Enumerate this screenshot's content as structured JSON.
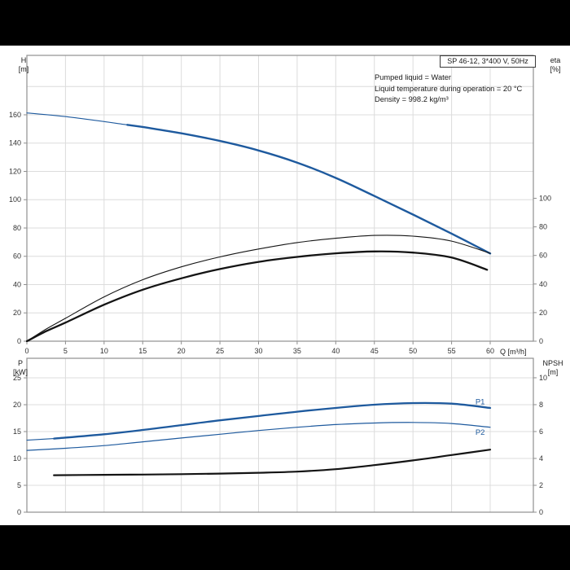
{
  "window": {
    "bg": "#000000",
    "panel_bg": "#ffffff"
  },
  "header": {
    "title_box": "SP 46-12, 3*400 V, 50Hz",
    "info_lines": [
      "Pumped liquid = Water",
      "Liquid temperature during operation = 20 °C",
      "Density = 998.2 kg/m³"
    ]
  },
  "colors": {
    "accent_blue": "#1e5a9e",
    "curve_black": "#141414",
    "grid": "#dcdcdc",
    "frame": "#8f8f8f",
    "tick_text": "#333333"
  },
  "chart_data": [
    {
      "type": "line",
      "title": "SP 46-12, 3*400 V, 50Hz",
      "x": {
        "label": "Q [m³/h]",
        "min": 0,
        "max": 60,
        "ticks": [
          0,
          5,
          10,
          15,
          20,
          25,
          30,
          35,
          40,
          45,
          50,
          55,
          60
        ],
        "grid": [
          5,
          10,
          15,
          20,
          25,
          30,
          35,
          40,
          45,
          50,
          55,
          60
        ],
        "show_labels": true
      },
      "y_left": {
        "label_lines": [
          "H",
          "[m]"
        ],
        "min": 0,
        "max": 202,
        "ticks": [
          0,
          20,
          40,
          60,
          80,
          100,
          120,
          140,
          160
        ],
        "grid": [
          20,
          40,
          60,
          80,
          100,
          120,
          140,
          160,
          180
        ]
      },
      "y_right": {
        "label_lines": [
          "eta",
          "[%]"
        ],
        "min": 0,
        "max": 200,
        "ticks": [
          0,
          20,
          40,
          60,
          80,
          100
        ]
      },
      "legend": "off",
      "series": [
        {
          "id": "head-lead",
          "name": "H head (low-flow, thin)",
          "axis": "left",
          "color": "#1e5a9e",
          "width": 1.1,
          "points": [
            [
              0,
              161.3
            ],
            [
              6,
              158.1
            ],
            [
              13,
              152.9
            ]
          ]
        },
        {
          "id": "head",
          "name": "H head (duty range)",
          "axis": "left",
          "color": "#1e5a9e",
          "width": 2.4,
          "points": [
            [
              13,
              152.9
            ],
            [
              15,
              151.4
            ],
            [
              20,
              146.9
            ],
            [
              25,
              141.5
            ],
            [
              30,
              134.8
            ],
            [
              35,
              126.2
            ],
            [
              40,
              115.4
            ],
            [
              45,
              102.6
            ],
            [
              50,
              89.5
            ],
            [
              55,
              76.0
            ],
            [
              60,
              62.0
            ]
          ]
        },
        {
          "id": "eta-pump",
          "name": "eta pump",
          "axis": "right",
          "color": "#141414",
          "width": 1.1,
          "points": [
            [
              0,
              0
            ],
            [
              2.5,
              8.5
            ],
            [
              5,
              16
            ],
            [
              10,
              31
            ],
            [
              15,
              43
            ],
            [
              20,
              52
            ],
            [
              25,
              59
            ],
            [
              30,
              64.5
            ],
            [
              35,
              69
            ],
            [
              40,
              72
            ],
            [
              45,
              74
            ],
            [
              50,
              73.5
            ],
            [
              55,
              70
            ],
            [
              60,
              61.5
            ]
          ]
        },
        {
          "id": "eta-pump-motor",
          "name": "eta pump+motor",
          "axis": "right",
          "color": "#141414",
          "width": 2.3,
          "points": [
            [
              0,
              0
            ],
            [
              2.5,
              7
            ],
            [
              5,
              13
            ],
            [
              10,
              25.5
            ],
            [
              15,
              36
            ],
            [
              20,
              44
            ],
            [
              25,
              50.5
            ],
            [
              30,
              55.5
            ],
            [
              35,
              59
            ],
            [
              40,
              61.5
            ],
            [
              45,
              62.8
            ],
            [
              50,
              62
            ],
            [
              55,
              58.5
            ],
            [
              59.6,
              50
            ]
          ]
        }
      ]
    },
    {
      "type": "line",
      "x": {
        "label": "",
        "min": 0,
        "max": 60,
        "ticks": [
          0,
          5,
          10,
          15,
          20,
          25,
          30,
          35,
          40,
          45,
          50,
          55,
          60
        ],
        "grid": [
          5,
          10,
          15,
          20,
          25,
          30,
          35,
          40,
          45,
          50,
          55,
          60
        ],
        "show_labels": false
      },
      "y_left": {
        "label_lines": [
          "P",
          "[kW]"
        ],
        "min": 0,
        "max": 28.64,
        "ticks": [
          0,
          5,
          10,
          15,
          20,
          25
        ],
        "grid": [
          5,
          10,
          15,
          20,
          25
        ]
      },
      "y_right": {
        "label_lines": [
          "NPSH",
          "[m]"
        ],
        "min": 0,
        "max": 11.45,
        "ticks": [
          0,
          2,
          4,
          6,
          8,
          10
        ]
      },
      "legend": "off",
      "series": [
        {
          "id": "p1-lead",
          "name": "P1 (low-flow, thin)",
          "axis": "left",
          "color": "#1e5a9e",
          "width": 1.1,
          "points": [
            [
              0,
              13.4
            ],
            [
              3.5,
              13.7
            ]
          ]
        },
        {
          "id": "p1",
          "name": "P1 input power",
          "axis": "left",
          "color": "#1e5a9e",
          "width": 2.3,
          "points": [
            [
              3.5,
              13.7
            ],
            [
              10,
              14.5
            ],
            [
              15,
              15.3
            ],
            [
              20,
              16.2
            ],
            [
              25,
              17.1
            ],
            [
              30,
              17.9
            ],
            [
              35,
              18.7
            ],
            [
              40,
              19.4
            ],
            [
              45,
              20.0
            ],
            [
              50,
              20.3
            ],
            [
              55,
              20.2
            ],
            [
              60,
              19.4
            ]
          ]
        },
        {
          "id": "p2",
          "name": "P2 shaft power",
          "axis": "left",
          "color": "#1e5a9e",
          "width": 1.2,
          "points": [
            [
              0,
              11.5
            ],
            [
              5,
              11.9
            ],
            [
              10,
              12.4
            ],
            [
              15,
              13.1
            ],
            [
              20,
              13.8
            ],
            [
              25,
              14.5
            ],
            [
              30,
              15.2
            ],
            [
              35,
              15.8
            ],
            [
              40,
              16.3
            ],
            [
              45,
              16.6
            ],
            [
              50,
              16.7
            ],
            [
              55,
              16.5
            ],
            [
              60,
              15.8
            ]
          ]
        },
        {
          "id": "npsh",
          "name": "NPSH",
          "axis": "right",
          "color": "#141414",
          "width": 2.2,
          "points": [
            [
              3.5,
              2.75
            ],
            [
              10,
              2.78
            ],
            [
              15,
              2.8
            ],
            [
              20,
              2.83
            ],
            [
              25,
              2.87
            ],
            [
              30,
              2.93
            ],
            [
              35,
              3.02
            ],
            [
              40,
              3.2
            ],
            [
              45,
              3.5
            ],
            [
              50,
              3.85
            ],
            [
              55,
              4.25
            ],
            [
              60,
              4.65
            ]
          ]
        }
      ],
      "annotations": [
        {
          "text": "P1",
          "x": 58.7,
          "y": 20.5,
          "axis": "left",
          "color": "#1e5a9e"
        },
        {
          "text": "P2",
          "x": 58.7,
          "y": 14.85,
          "axis": "left",
          "color": "#1e5a9e"
        }
      ]
    }
  ]
}
